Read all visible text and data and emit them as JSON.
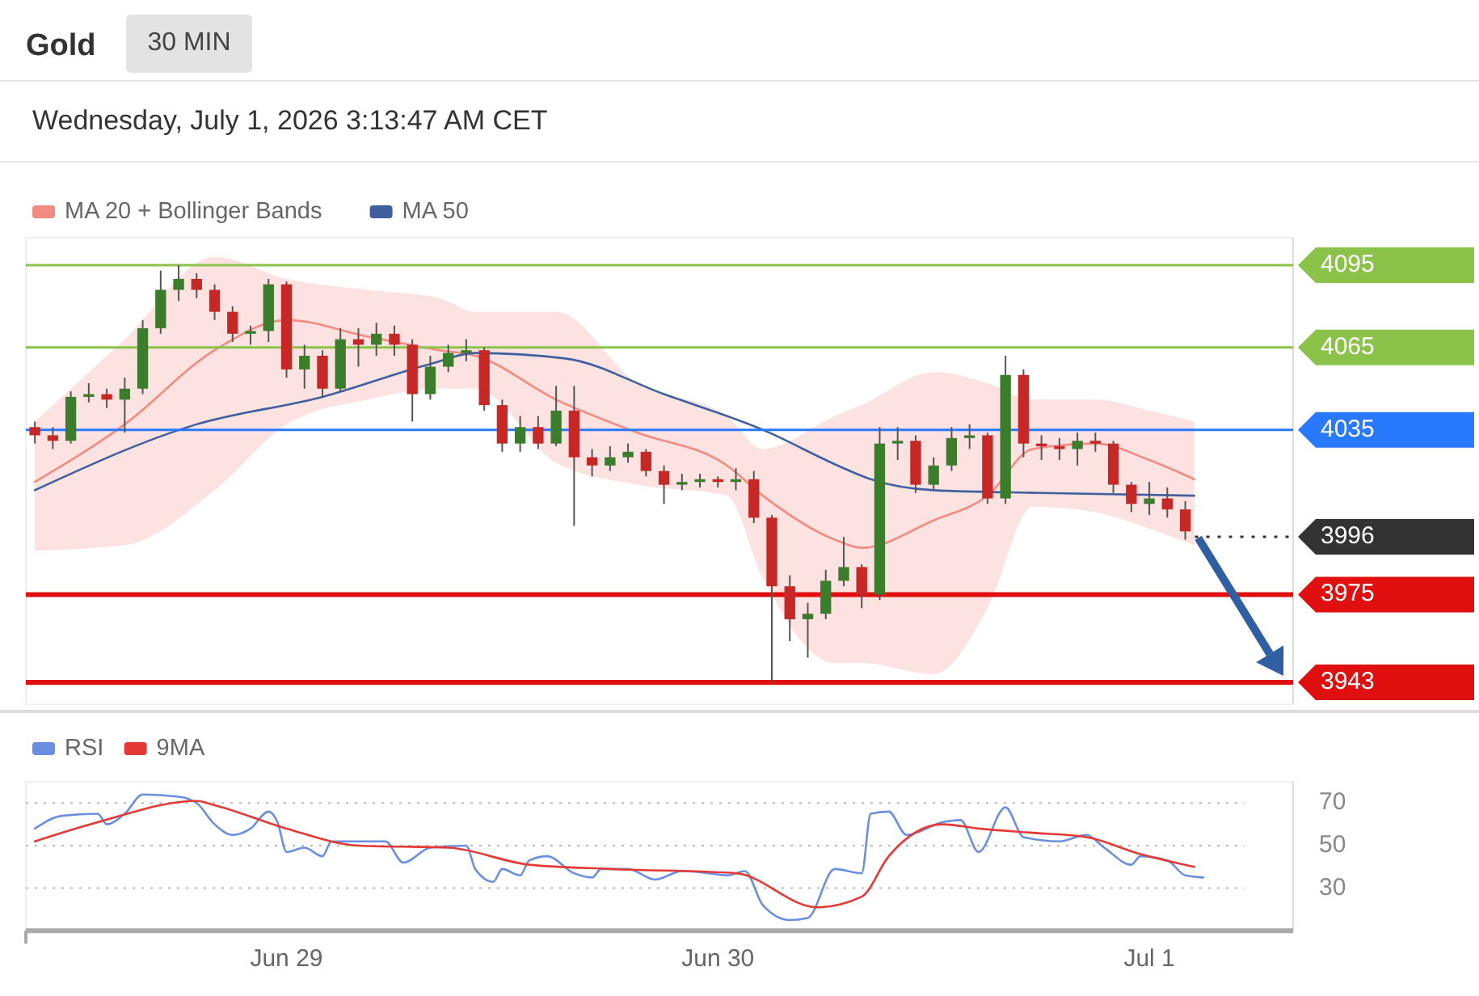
{
  "chart_data": [
    {
      "type": "candlestick",
      "title": "Gold",
      "subtitle": "Wednesday, July 1, 2026 3:13:47 AM CET",
      "annotations": [
        "30 MIN"
      ],
      "x": [
        "2026-06-28T10:00",
        "2026-06-28T11:00",
        "2026-06-28T12:00",
        "2026-06-28T13:00",
        "2026-06-28T14:00",
        "2026-06-28T15:00",
        "2026-06-28T16:00",
        "2026-06-28T17:00",
        "2026-06-28T18:00",
        "2026-06-28T19:00",
        "2026-06-28T20:00",
        "2026-06-28T21:00",
        "2026-06-28T22:00",
        "2026-06-28T23:00",
        "2026-06-29T00:00",
        "2026-06-29T01:00",
        "2026-06-29T02:00",
        "2026-06-29T03:00",
        "2026-06-29T04:00",
        "2026-06-29T05:00",
        "2026-06-29T06:00",
        "2026-06-29T07:00",
        "2026-06-29T08:00",
        "2026-06-29T09:00",
        "2026-06-29T10:00",
        "2026-06-29T11:00",
        "2026-06-29T12:00",
        "2026-06-29T13:00",
        "2026-06-29T14:00",
        "2026-06-29T15:00",
        "2026-06-29T16:00",
        "2026-06-29T17:00",
        "2026-06-29T18:00",
        "2026-06-29T19:00",
        "2026-06-29T20:00",
        "2026-06-29T21:00",
        "2026-06-29T22:00",
        "2026-06-29T23:00",
        "2026-06-30T00:00",
        "2026-06-30T01:00",
        "2026-06-30T02:00",
        "2026-06-30T03:00",
        "2026-06-30T04:00",
        "2026-06-30T05:00",
        "2026-06-30T06:00",
        "2026-06-30T07:00",
        "2026-06-30T08:00",
        "2026-06-30T09:00",
        "2026-06-30T10:00",
        "2026-06-30T11:00",
        "2026-06-30T12:00",
        "2026-06-30T13:00",
        "2026-06-30T14:00",
        "2026-06-30T15:00",
        "2026-06-30T16:00",
        "2026-06-30T17:00",
        "2026-06-30T18:00",
        "2026-06-30T19:00",
        "2026-06-30T20:00",
        "2026-06-30T21:00",
        "2026-06-30T22:00",
        "2026-06-30T23:00",
        "2026-07-01T00:00",
        "2026-07-01T01:00",
        "2026-07-01T02:00"
      ],
      "ohlc": [
        [
          4036,
          4038,
          4030,
          4033
        ],
        [
          4033,
          4036,
          4028,
          4031
        ],
        [
          4031,
          4049,
          4030,
          4047
        ],
        [
          4047,
          4052,
          4045,
          4048
        ],
        [
          4048,
          4050,
          4043,
          4046
        ],
        [
          4046,
          4054,
          4034,
          4050
        ],
        [
          4050,
          4075,
          4048,
          4072
        ],
        [
          4072,
          4093,
          4070,
          4086
        ],
        [
          4086,
          4095,
          4082,
          4090
        ],
        [
          4090,
          4092,
          4083,
          4086
        ],
        [
          4086,
          4088,
          4075,
          4078
        ],
        [
          4078,
          4080,
          4067,
          4070
        ],
        [
          4070,
          4073,
          4066,
          4071
        ],
        [
          4071,
          4090,
          4067,
          4088
        ],
        [
          4088,
          4089,
          4054,
          4057
        ],
        [
          4057,
          4066,
          4050,
          4062
        ],
        [
          4062,
          4064,
          4047,
          4050
        ],
        [
          4050,
          4072,
          4049,
          4068
        ],
        [
          4068,
          4072,
          4058,
          4066
        ],
        [
          4066,
          4074,
          4062,
          4070
        ],
        [
          4070,
          4073,
          4062,
          4066
        ],
        [
          4066,
          4068,
          4038,
          4048
        ],
        [
          4048,
          4062,
          4046,
          4058
        ],
        [
          4058,
          4066,
          4056,
          4063
        ],
        [
          4063,
          4068,
          4060,
          4064
        ],
        [
          4064,
          4065,
          4042,
          4044
        ],
        [
          4044,
          4046,
          4027,
          4030
        ],
        [
          4030,
          4040,
          4027,
          4036
        ],
        [
          4036,
          4040,
          4028,
          4030
        ],
        [
          4030,
          4051,
          4029,
          4042
        ],
        [
          4042,
          4051,
          4000,
          4025
        ],
        [
          4025,
          4028,
          4018,
          4022
        ],
        [
          4022,
          4029,
          4020,
          4025
        ],
        [
          4025,
          4030,
          4023,
          4027
        ],
        [
          4027,
          4028,
          4018,
          4020
        ],
        [
          4020,
          4022,
          4008,
          4015
        ],
        [
          4015,
          4019,
          4013,
          4016
        ],
        [
          4016,
          4019,
          4014,
          4017
        ],
        [
          4017,
          4018,
          4014,
          4016
        ],
        [
          4016,
          4021,
          4013,
          4017
        ],
        [
          4017,
          4020,
          4001,
          4003
        ],
        [
          4003,
          4004,
          3943,
          3978
        ],
        [
          3978,
          3982,
          3958,
          3966
        ],
        [
          3966,
          3972,
          3952,
          3968
        ],
        [
          3968,
          3984,
          3966,
          3980
        ],
        [
          3980,
          3996,
          3978,
          3985
        ],
        [
          3985,
          3986,
          3970,
          3975
        ],
        [
          3975,
          4036,
          3973,
          4030
        ],
        [
          4030,
          4036,
          4024,
          4031
        ],
        [
          4031,
          4033,
          4012,
          4015
        ],
        [
          4015,
          4025,
          4013,
          4022
        ],
        [
          4022,
          4036,
          4020,
          4032
        ],
        [
          4032,
          4037,
          4028,
          4033
        ],
        [
          4033,
          4034,
          4008,
          4010
        ],
        [
          4010,
          4062,
          4008,
          4055
        ],
        [
          4055,
          4057,
          4025,
          4030
        ],
        [
          4030,
          4033,
          4024,
          4029
        ],
        [
          4029,
          4032,
          4024,
          4028
        ],
        [
          4028,
          4034,
          4022,
          4031
        ],
        [
          4031,
          4034,
          4027,
          4030
        ],
        [
          4030,
          4031,
          4012,
          4015
        ],
        [
          4015,
          4016,
          4005,
          4008
        ],
        [
          4008,
          4016,
          4004,
          4010
        ],
        [
          4010,
          4014,
          4003,
          4006
        ],
        [
          4006,
          4009,
          3995,
          3998
        ]
      ],
      "colors": [
        "#c62828",
        "#c62828",
        "#3b7d2c",
        "#3b7d2c",
        "#c62828",
        "#3b7d2c",
        "#3b7d2c",
        "#3b7d2c",
        "#3b7d2c",
        "#c62828",
        "#c62828",
        "#c62828",
        "#3b7d2c",
        "#3b7d2c",
        "#c62828",
        "#3b7d2c",
        "#c62828",
        "#3b7d2c",
        "#c62828",
        "#3b7d2c",
        "#c62828",
        "#c62828",
        "#3b7d2c",
        "#3b7d2c",
        "#3b7d2c",
        "#c62828",
        "#c62828",
        "#3b7d2c",
        "#c62828",
        "#3b7d2c",
        "#c62828",
        "#c62828",
        "#3b7d2c",
        "#3b7d2c",
        "#c62828",
        "#c62828",
        "#3b7d2c",
        "#3b7d2c",
        "#c62828",
        "#3b7d2c",
        "#c62828",
        "#c62828",
        "#c62828",
        "#3b7d2c",
        "#3b7d2c",
        "#3b7d2c",
        "#c62828",
        "#3b7d2c",
        "#3b7d2c",
        "#c62828",
        "#3b7d2c",
        "#3b7d2c",
        "#3b7d2c",
        "#c62828",
        "#3b7d2c",
        "#c62828",
        "#c62828",
        "#c62828",
        "#3b7d2c",
        "#c62828",
        "#c62828",
        "#c62828",
        "#3b7d2c",
        "#c62828",
        "#c62828"
      ],
      "series": [
        {
          "name": "MA 20 + Bollinger Bands",
          "type": "line",
          "color": "#f28b82",
          "x": [
            "2026-06-28T10:00",
            "2026-06-28T15:00",
            "2026-06-28T20:00",
            "2026-06-29T00:00",
            "2026-06-29T04:30",
            "2026-06-29T08:30",
            "2026-06-29T10:30",
            "2026-06-29T15:00",
            "2026-06-29T19:30",
            "2026-06-30T00:30",
            "2026-06-30T02:30",
            "2026-06-30T06:30",
            "2026-06-30T08:00",
            "2026-06-30T12:00",
            "2026-06-30T15:00",
            "2026-06-30T17:30",
            "2026-06-30T21:00",
            "2026-07-01T00:00",
            "2026-07-01T02:30"
          ],
          "values": [
            4016,
            4037,
            4064,
            4075,
            4069,
            4064,
            4062,
            4046,
            4034,
            4022,
            4011,
            3995,
            3992,
            4002,
            4011,
            4028,
            4030,
            4024,
            4017
          ],
          "lower": [
            3991,
            3993,
            4013,
            4037,
            4046,
            4050,
            4050,
            4023,
            4015,
            4011,
            3981,
            3950,
            3950,
            3946,
            3970,
            4007,
            4005,
            3999,
            3993
          ],
          "upper": [
            4038,
            4068,
            4098,
            4090,
            4086,
            4083,
            4078,
            4078,
            4052,
            4040,
            4028,
            4040,
            4044,
            4056,
            4052,
            4046,
            4046,
            4042,
            4038
          ]
        },
        {
          "name": "MA 50",
          "type": "line",
          "color": "#3f5f9f",
          "x": [
            "2026-06-28T10:00",
            "2026-06-28T19:00",
            "2026-06-29T02:00",
            "2026-06-29T08:00",
            "2026-06-29T10:30",
            "2026-06-29T15:30",
            "2026-06-29T21:00",
            "2026-06-30T02:30",
            "2026-06-30T07:00",
            "2026-06-30T08:30",
            "2026-06-30T12:00",
            "2026-06-30T18:00",
            "2026-07-01T02:30"
          ],
          "values": [
            4013,
            4037,
            4047,
            4059,
            4063,
            4061,
            4048,
            4035,
            4021,
            4017,
            4013,
            4012,
            4011
          ]
        }
      ],
      "ref_lines": [
        {
          "axis": "y",
          "value": 4095,
          "label": "4095",
          "color": "#8bc34a"
        },
        {
          "axis": "y",
          "value": 4065,
          "label": "4065",
          "color": "#8bc34a"
        },
        {
          "axis": "y",
          "value": 4035,
          "label": "4035",
          "color": "#2979ff"
        },
        {
          "axis": "y",
          "value": 3996,
          "label": "3996",
          "color": "#333333",
          "line_style": "dotted"
        },
        {
          "axis": "y",
          "value": 3975,
          "label": "3975",
          "color": "#e01010"
        },
        {
          "axis": "y",
          "value": 3943,
          "label": "3943",
          "color": "#e01010"
        }
      ],
      "xlim": [
        "2026-06-28T09:30",
        "2026-07-01T08:00"
      ],
      "ylim": [
        3935,
        4105
      ],
      "tick_labels": false,
      "legend": "top left"
    },
    {
      "type": "line",
      "series": [
        {
          "name": "RSI",
          "color": "#6b8fe0",
          "x": [
            "2026-06-28T10:00",
            "2026-06-28T11:30",
            "2026-06-28T13:30",
            "2026-06-28T14:00",
            "2026-06-28T15:00",
            "2026-06-28T16:00",
            "2026-06-28T18:00",
            "2026-06-28T19:00",
            "2026-06-28T20:00",
            "2026-06-28T21:00",
            "2026-06-28T22:00",
            "2026-06-28T23:00",
            "2026-06-28T23:30",
            "2026-06-29T00:00",
            "2026-06-29T01:00",
            "2026-06-29T02:00",
            "2026-06-29T02:30",
            "2026-06-29T04:00",
            "2026-06-29T05:30",
            "2026-06-29T06:30",
            "2026-06-29T08:00",
            "2026-06-29T10:00",
            "2026-06-29T10:30",
            "2026-06-29T11:30",
            "2026-06-29T12:00",
            "2026-06-29T13:00",
            "2026-06-29T13:30",
            "2026-06-29T14:30",
            "2026-06-29T16:00",
            "2026-06-29T17:00",
            "2026-06-29T17:30",
            "2026-06-29T19:00",
            "2026-06-29T20:30",
            "2026-06-29T22:00",
            "2026-06-29T23:30",
            "2026-06-30T00:30",
            "2026-06-30T01:30",
            "2026-06-30T02:30",
            "2026-06-30T04:00",
            "2026-06-30T05:00",
            "2026-06-30T06:30",
            "2026-06-30T08:00",
            "2026-06-30T08:30",
            "2026-06-30T09:30",
            "2026-06-30T10:30",
            "2026-06-30T12:30",
            "2026-06-30T13:30",
            "2026-06-30T14:30",
            "2026-06-30T16:00",
            "2026-06-30T17:00",
            "2026-06-30T19:00",
            "2026-06-30T20:30",
            "2026-06-30T21:30",
            "2026-06-30T23:00",
            "2026-06-30T23:30",
            "2026-07-01T01:00",
            "2026-07-01T02:00",
            "2026-07-01T03:00"
          ],
          "values": [
            58,
            64,
            65,
            60,
            65,
            74,
            73,
            70,
            60,
            55,
            58,
            66,
            61,
            47,
            49,
            45,
            52,
            52,
            52,
            42,
            49,
            50,
            39,
            33,
            39,
            36,
            43,
            45,
            37,
            35,
            39,
            39,
            34,
            38,
            37,
            36,
            38,
            22,
            15,
            16,
            39,
            37,
            65,
            66,
            55,
            61,
            62,
            47,
            68,
            54,
            52,
            55,
            49,
            41,
            45,
            43,
            36,
            35
          ]
        },
        {
          "name": "9MA",
          "color": "#e53935",
          "x": [
            "2026-06-28T10:00",
            "2026-06-28T13:30",
            "2026-06-28T19:00",
            "2026-06-28T20:00",
            "2026-06-29T00:00",
            "2026-06-29T04:00",
            "2026-06-29T09:00",
            "2026-06-29T13:30",
            "2026-06-29T18:00",
            "2026-06-30T01:00",
            "2026-06-30T05:30",
            "2026-06-30T08:00",
            "2026-06-30T09:30",
            "2026-06-30T12:30",
            "2026-06-30T14:30",
            "2026-06-30T17:30",
            "2026-06-30T20:30",
            "2026-06-30T23:30",
            "2026-07-01T02:30"
          ],
          "values": [
            52,
            61,
            71,
            69,
            58,
            50,
            49,
            41,
            39,
            37,
            21,
            26,
            45,
            60,
            58,
            56,
            54,
            46,
            40
          ]
        }
      ],
      "xlim": [
        "2026-06-28T09:30",
        "2026-07-01T08:00"
      ],
      "ylim": [
        10,
        80
      ],
      "yticks": [
        30,
        50,
        70
      ],
      "xticks": [
        {
          "value": "2026-06-29",
          "label": "Jun 29"
        },
        {
          "value": "2026-06-30",
          "label": "Jun 30"
        },
        {
          "value": "2026-07-01",
          "label": "Jul 1"
        }
      ],
      "grid": "y",
      "legend": "top left"
    }
  ]
}
